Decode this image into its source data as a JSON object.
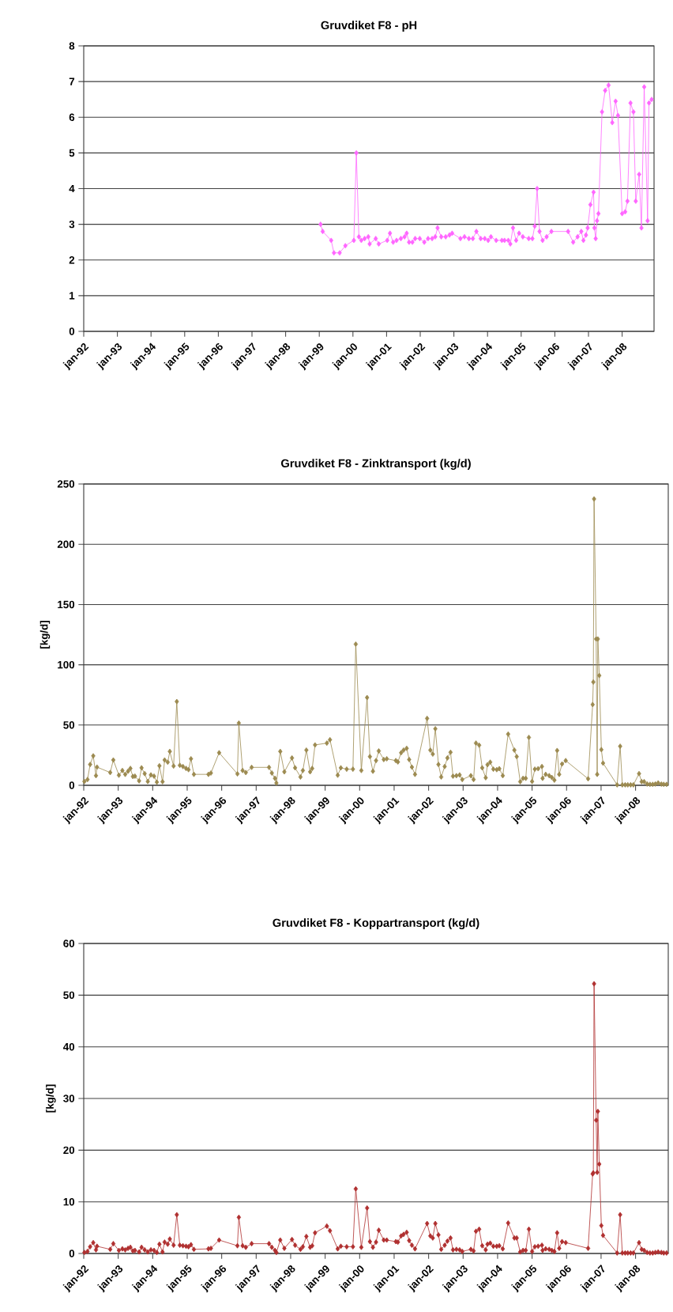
{
  "chart_data": [
    {
      "type": "line",
      "title": "Gruvdiket F8 - pH",
      "color": "#ff66ff",
      "marker": "diamond",
      "grid": "y",
      "x": [
        "1999-01-15",
        "1999-02-07",
        "1999-05-10",
        "1999-06-09",
        "1999-08-10",
        "1999-10-11",
        "2000-01-11",
        "2000-02-07",
        "2000-03-06",
        "2000-04-01",
        "2000-05-07",
        "2000-06-16",
        "2000-07-01",
        "2000-09-05",
        "2000-10-08",
        "2001-01-08",
        "2001-02-07",
        "2001-03-13",
        "2001-04-19",
        "2001-06-05",
        "2001-07-15",
        "2001-08-07",
        "2001-09-02",
        "2001-10-08",
        "2001-11-07",
        "2001-12-27",
        "2002-02-14",
        "2002-03-27",
        "2002-05-10",
        "2002-06-13",
        "2002-07-08",
        "2002-08-17",
        "2002-10-04",
        "2002-11-14",
        "2002-12-13",
        "2003-03-13",
        "2003-04-26",
        "2003-06-13",
        "2003-07-26",
        "2003-09-02",
        "2003-10-19",
        "2003-12-02",
        "2004-01-08",
        "2004-02-07",
        "2004-04-04",
        "2004-06-05",
        "2004-07-04",
        "2004-08-14",
        "2004-09-05",
        "2004-10-04",
        "2004-11-07",
        "2004-12-09",
        "2005-01-19",
        "2005-03-24",
        "2005-05-03",
        "2005-05-28",
        "2005-06-23",
        "2005-07-19",
        "2005-08-21",
        "2005-10-04",
        "2005-11-25",
        "2006-05-25",
        "2006-07-19",
        "2006-09-05",
        "2006-10-15",
        "2006-11-07",
        "2006-12-05",
        "2006-12-23",
        "2007-01-22",
        "2007-02-25",
        "2007-03-06",
        "2007-03-20",
        "2007-04-04",
        "2007-04-19",
        "2007-05-28",
        "2007-07-01",
        "2007-08-07",
        "2007-09-16",
        "2007-10-22",
        "2007-11-17",
        "2008-01-01",
        "2008-02-03",
        "2008-02-28",
        "2008-04-01",
        "2008-05-03",
        "2008-05-28",
        "2008-07-04",
        "2008-07-29",
        "2008-08-28",
        "2008-10-04",
        "2008-10-19",
        "2008-11-17"
      ],
      "values": [
        3.0,
        2.8,
        2.55,
        2.2,
        2.2,
        2.4,
        2.55,
        5.0,
        2.65,
        2.55,
        2.6,
        2.65,
        2.45,
        2.6,
        2.45,
        2.55,
        2.75,
        2.5,
        2.55,
        2.6,
        2.65,
        2.75,
        2.5,
        2.5,
        2.6,
        2.6,
        2.5,
        2.6,
        2.6,
        2.65,
        2.9,
        2.65,
        2.65,
        2.7,
        2.75,
        2.6,
        2.65,
        2.6,
        2.6,
        2.8,
        2.6,
        2.6,
        2.55,
        2.65,
        2.55,
        2.55,
        2.55,
        2.55,
        2.45,
        2.9,
        2.55,
        2.75,
        2.65,
        2.6,
        2.6,
        2.95,
        4.0,
        2.8,
        2.55,
        2.65,
        2.8,
        2.8,
        2.5,
        2.65,
        2.8,
        2.55,
        2.7,
        2.9,
        3.55,
        3.9,
        2.9,
        2.6,
        3.1,
        3.3,
        6.15,
        6.75,
        6.9,
        5.85,
        6.45,
        6.05,
        3.3,
        3.35,
        3.65,
        6.4,
        6.15,
        3.65,
        4.4,
        2.9,
        6.85,
        3.1,
        6.4,
        6.5
      ],
      "xlim": [
        "1992-01-01",
        "2008-12-13"
      ],
      "ylim": [
        0,
        8
      ],
      "yticks": [
        0,
        1,
        2,
        3,
        4,
        5,
        6,
        7,
        8
      ],
      "xticks": [
        {
          "value": "1992-01-01",
          "label": "jan-92"
        },
        {
          "value": "1993-01-01",
          "label": "jan-93"
        },
        {
          "value": "1994-01-01",
          "label": "jan-94"
        },
        {
          "value": "1995-01-01",
          "label": "jan-95"
        },
        {
          "value": "1996-01-01",
          "label": "jan-96"
        },
        {
          "value": "1997-01-01",
          "label": "jan-97"
        },
        {
          "value": "1998-01-01",
          "label": "jan-98"
        },
        {
          "value": "1999-01-01",
          "label": "jan-99"
        },
        {
          "value": "2000-01-01",
          "label": "jan-00"
        },
        {
          "value": "2001-01-01",
          "label": "jan-01"
        },
        {
          "value": "2002-01-01",
          "label": "jan-02"
        },
        {
          "value": "2003-01-01",
          "label": "jan-03"
        },
        {
          "value": "2004-01-01",
          "label": "jan-04"
        },
        {
          "value": "2005-01-01",
          "label": "jan-05"
        },
        {
          "value": "2006-01-01",
          "label": "jan-06"
        },
        {
          "value": "2007-01-01",
          "label": "jan-07"
        },
        {
          "value": "2008-01-01",
          "label": "jan-08"
        }
      ]
    },
    {
      "type": "line",
      "title": "Gruvdiket F8 - Zinktransport (kg/d)",
      "ylabel": "[kg/d]",
      "color": "#9c8a50",
      "marker": "diamond",
      "grid": "y",
      "x": [
        "1992-01-08",
        "1992-02-10",
        "1992-03-09",
        "1992-04-11",
        "1992-05-10",
        "1992-05-21",
        "1992-10-08",
        "1992-11-10",
        "1993-01-08",
        "1993-02-14",
        "1993-03-16",
        "1993-04-15",
        "1993-05-10",
        "1993-06-05",
        "1993-06-27",
        "1993-08-10",
        "1993-09-05",
        "1993-10-08",
        "1993-11-10",
        "1993-12-13",
        "1994-01-15",
        "1994-02-14",
        "1994-03-13",
        "1994-04-15",
        "1994-05-07",
        "1994-06-09",
        "1994-07-01",
        "1994-08-10",
        "1994-09-13",
        "1994-10-15",
        "1994-11-17",
        "1994-12-20",
        "1995-01-15",
        "1995-02-10",
        "1995-03-13",
        "1995-08-14",
        "1995-09-09",
        "1995-12-05",
        "1996-06-16",
        "1996-07-01",
        "1996-08-10",
        "1996-09-13",
        "1996-11-14",
        "1997-05-17",
        "1997-06-16",
        "1997-07-19",
        "1997-08-03",
        "1997-09-13",
        "1997-10-26",
        "1998-01-15",
        "1998-02-17",
        "1998-04-15",
        "1998-05-10",
        "1998-06-16",
        "1998-07-26",
        "1998-08-17",
        "1998-09-16",
        "1999-01-19",
        "1999-02-21",
        "1999-05-14",
        "1999-06-16",
        "1999-08-17",
        "1999-10-22",
        "1999-11-21",
        "2000-01-19",
        "2000-03-20",
        "2000-04-19",
        "2000-05-21",
        "2000-06-23",
        "2000-07-22",
        "2000-09-13",
        "2000-10-15",
        "2001-01-19",
        "2001-02-10",
        "2001-03-16",
        "2001-04-11",
        "2001-05-14",
        "2001-06-09",
        "2001-07-08",
        "2001-08-10",
        "2001-12-16",
        "2002-01-19",
        "2002-02-14",
        "2002-03-13",
        "2002-04-15",
        "2002-05-14",
        "2002-06-20",
        "2002-07-19",
        "2002-08-21",
        "2002-09-16",
        "2002-10-22",
        "2002-11-25",
        "2002-12-23",
        "2003-03-24",
        "2003-04-22",
        "2003-05-17",
        "2003-06-20",
        "2003-07-22",
        "2003-08-28",
        "2003-09-16",
        "2003-10-15",
        "2003-11-17",
        "2003-12-23",
        "2004-01-19",
        "2004-02-25",
        "2004-04-22",
        "2004-06-27",
        "2004-07-22",
        "2004-08-28",
        "2004-09-27",
        "2004-10-26",
        "2004-11-28",
        "2005-01-01",
        "2005-01-30",
        "2005-03-06",
        "2005-04-15",
        "2005-04-22",
        "2005-05-25",
        "2005-07-01",
        "2005-07-29",
        "2005-08-25",
        "2005-09-23",
        "2005-10-15",
        "2005-11-14",
        "2005-12-23",
        "2006-08-17",
        "2006-10-04",
        "2006-10-11",
        "2006-10-19",
        "2006-11-10",
        "2006-11-21",
        "2006-11-28",
        "2006-12-13",
        "2007-01-04",
        "2007-01-22",
        "2007-06-20",
        "2007-07-22",
        "2007-08-14",
        "2007-09-13",
        "2007-10-11",
        "2007-11-10",
        "2007-12-09",
        "2008-02-07",
        "2008-03-06",
        "2008-04-01",
        "2008-05-03",
        "2008-06-02",
        "2008-07-01",
        "2008-07-29",
        "2008-08-28",
        "2008-10-01",
        "2008-10-26",
        "2008-11-25"
      ],
      "values": [
        3.2,
        4.8,
        17.3,
        24.4,
        8.0,
        15.1,
        10.6,
        21.0,
        8.4,
        12.3,
        9.1,
        11.7,
        14.0,
        7.3,
        7.6,
        3.7,
        14.5,
        9.7,
        3.2,
        8.6,
        7.6,
        2.6,
        16.2,
        3.0,
        21.0,
        19.2,
        28.1,
        16.0,
        69.5,
        16.6,
        15.6,
        14.0,
        13.0,
        22.0,
        9.1,
        9.1,
        10.2,
        27.0,
        9.5,
        51.6,
        12.3,
        10.6,
        14.9,
        14.9,
        10.2,
        5.8,
        1.9,
        28.1,
        11.2,
        22.7,
        14.5,
        6.9,
        12.3,
        29.2,
        11.2,
        14.0,
        33.5,
        35.0,
        37.8,
        8.4,
        14.5,
        13.4,
        13.4,
        117.1,
        12.3,
        72.8,
        23.8,
        11.7,
        20.5,
        28.5,
        21.4,
        22.0,
        20.5,
        19.4,
        27.0,
        29.2,
        30.7,
        21.4,
        15.1,
        9.1,
        55.5,
        29.2,
        25.9,
        46.9,
        17.3,
        6.9,
        15.6,
        22.7,
        27.4,
        7.6,
        8.0,
        8.6,
        4.8,
        8.0,
        4.8,
        35.0,
        33.3,
        14.5,
        6.3,
        17.1,
        19.2,
        13.4,
        13.0,
        13.8,
        8.0,
        42.5,
        29.2,
        23.8,
        3.0,
        5.8,
        5.8,
        39.7,
        3.2,
        13.4,
        13.8,
        15.6,
        5.8,
        9.1,
        8.0,
        6.5,
        4.3,
        28.9,
        9.1,
        17.7,
        20.5,
        5.4,
        67.0,
        85.7,
        237.6,
        121.4,
        9.1,
        121.4,
        91.1,
        29.6,
        18.4,
        0.4,
        32.4,
        0.4,
        0.4,
        0.4,
        0.4,
        0.4,
        9.7,
        3.0,
        3.0,
        1.1,
        0.8,
        0.8,
        1.1,
        2.0,
        1.0,
        0.8,
        0.8
      ],
      "xlim": [
        "1992-01-01",
        "2008-12-13"
      ],
      "ylim": [
        0,
        250
      ],
      "yticks": [
        0,
        50,
        100,
        150,
        200,
        250
      ],
      "xticks": [
        {
          "value": "1992-01-01",
          "label": "jan-92"
        },
        {
          "value": "1993-01-01",
          "label": "jan-93"
        },
        {
          "value": "1994-01-01",
          "label": "jan-94"
        },
        {
          "value": "1995-01-01",
          "label": "jan-95"
        },
        {
          "value": "1996-01-01",
          "label": "jan-96"
        },
        {
          "value": "1997-01-01",
          "label": "jan-97"
        },
        {
          "value": "1998-01-01",
          "label": "jan-98"
        },
        {
          "value": "1999-01-01",
          "label": "jan-99"
        },
        {
          "value": "2000-01-01",
          "label": "jan-00"
        },
        {
          "value": "2001-01-01",
          "label": "jan-01"
        },
        {
          "value": "2002-01-01",
          "label": "jan-02"
        },
        {
          "value": "2003-01-01",
          "label": "jan-03"
        },
        {
          "value": "2004-01-01",
          "label": "jan-04"
        },
        {
          "value": "2005-01-01",
          "label": "jan-05"
        },
        {
          "value": "2006-01-01",
          "label": "jan-06"
        },
        {
          "value": "2007-01-01",
          "label": "jan-07"
        },
        {
          "value": "2008-01-01",
          "label": "jan-08"
        }
      ]
    },
    {
      "type": "line",
      "title": "Gruvdiket F8 - Koppartransport (kg/d)",
      "ylabel": "[kg/d]",
      "color": "#b03030",
      "marker": "diamond",
      "grid": "y",
      "x": [
        "1992-01-08",
        "1992-02-10",
        "1992-03-09",
        "1992-04-11",
        "1992-05-10",
        "1992-05-21",
        "1992-10-08",
        "1992-11-10",
        "1993-01-08",
        "1993-02-14",
        "1993-03-16",
        "1993-04-15",
        "1993-05-10",
        "1993-06-05",
        "1993-06-27",
        "1993-08-10",
        "1993-09-05",
        "1993-10-08",
        "1993-11-10",
        "1993-12-13",
        "1994-01-15",
        "1994-02-14",
        "1994-03-13",
        "1994-04-15",
        "1994-05-07",
        "1994-06-09",
        "1994-07-01",
        "1994-08-10",
        "1994-09-13",
        "1994-10-15",
        "1994-11-17",
        "1994-12-20",
        "1995-01-15",
        "1995-02-10",
        "1995-03-13",
        "1995-08-14",
        "1995-09-09",
        "1995-12-05",
        "1996-06-16",
        "1996-07-01",
        "1996-08-10",
        "1996-09-13",
        "1996-11-14",
        "1997-05-17",
        "1997-06-16",
        "1997-07-19",
        "1997-08-03",
        "1997-09-13",
        "1997-10-26",
        "1998-01-15",
        "1998-02-17",
        "1998-04-15",
        "1998-05-10",
        "1998-06-16",
        "1998-07-26",
        "1998-08-17",
        "1998-09-16",
        "1999-01-19",
        "1999-02-21",
        "1999-05-14",
        "1999-06-16",
        "1999-08-17",
        "1999-10-22",
        "1999-11-21",
        "2000-01-19",
        "2000-03-20",
        "2000-04-19",
        "2000-05-21",
        "2000-06-23",
        "2000-07-22",
        "2000-09-13",
        "2000-10-15",
        "2001-01-19",
        "2001-02-10",
        "2001-03-16",
        "2001-04-11",
        "2001-05-14",
        "2001-06-09",
        "2001-07-08",
        "2001-08-10",
        "2001-12-16",
        "2002-01-19",
        "2002-02-14",
        "2002-03-13",
        "2002-04-15",
        "2002-05-14",
        "2002-06-20",
        "2002-07-19",
        "2002-08-21",
        "2002-09-16",
        "2002-10-22",
        "2002-11-25",
        "2002-12-23",
        "2003-03-24",
        "2003-04-22",
        "2003-05-17",
        "2003-06-20",
        "2003-07-22",
        "2003-08-28",
        "2003-09-16",
        "2003-10-15",
        "2003-11-17",
        "2003-12-23",
        "2004-01-19",
        "2004-02-25",
        "2004-04-22",
        "2004-06-27",
        "2004-07-22",
        "2004-08-28",
        "2004-09-27",
        "2004-10-26",
        "2004-11-28",
        "2005-01-01",
        "2005-01-30",
        "2005-03-06",
        "2005-04-15",
        "2005-04-22",
        "2005-05-25",
        "2005-07-01",
        "2005-07-29",
        "2005-08-25",
        "2005-09-23",
        "2005-10-15",
        "2005-11-14",
        "2005-12-23",
        "2006-08-17",
        "2006-10-04",
        "2006-10-11",
        "2006-10-19",
        "2006-11-10",
        "2006-11-21",
        "2006-11-28",
        "2006-12-13",
        "2007-01-04",
        "2007-01-22",
        "2007-06-20",
        "2007-07-22",
        "2007-08-14",
        "2007-09-13",
        "2007-10-11",
        "2007-11-10",
        "2007-12-09",
        "2008-02-07",
        "2008-03-06",
        "2008-04-01",
        "2008-05-03",
        "2008-06-02",
        "2008-07-01",
        "2008-07-29",
        "2008-08-28",
        "2008-10-01",
        "2008-10-26",
        "2008-11-25"
      ],
      "values": [
        0.2,
        0.4,
        1.3,
        2.1,
        0.7,
        1.4,
        0.8,
        1.9,
        0.6,
        0.9,
        0.7,
        1.0,
        1.2,
        0.5,
        0.6,
        0.3,
        1.2,
        0.7,
        0.3,
        0.7,
        0.6,
        0.2,
        1.8,
        0.3,
        2.2,
        1.8,
        2.8,
        1.6,
        7.5,
        1.6,
        1.5,
        1.4,
        1.3,
        1.7,
        0.8,
        0.9,
        1.0,
        2.6,
        1.5,
        7.0,
        1.5,
        1.2,
        1.9,
        1.9,
        1.2,
        0.6,
        0.2,
        2.6,
        1.0,
        2.7,
        1.6,
        0.8,
        1.3,
        3.3,
        1.2,
        1.5,
        4.0,
        5.3,
        4.4,
        0.9,
        1.4,
        1.3,
        1.3,
        12.5,
        1.2,
        8.8,
        2.3,
        1.2,
        2.2,
        4.5,
        2.6,
        2.6,
        2.3,
        2.2,
        3.4,
        3.7,
        4.1,
        2.5,
        1.6,
        0.9,
        5.8,
        3.4,
        3.0,
        5.8,
        3.6,
        0.8,
        1.6,
        2.4,
        3.0,
        0.7,
        0.8,
        0.7,
        0.4,
        0.8,
        0.5,
        4.3,
        4.7,
        1.5,
        0.7,
        1.8,
        2.0,
        1.4,
        1.4,
        1.5,
        0.9,
        5.9,
        3.0,
        3.0,
        0.3,
        0.6,
        0.6,
        4.7,
        0.4,
        1.3,
        1.4,
        1.6,
        0.6,
        0.9,
        0.8,
        0.6,
        0.4,
        4.0,
        1.0,
        2.3,
        2.1,
        1.0,
        15.4,
        15.6,
        52.2,
        25.8,
        15.7,
        27.5,
        17.3,
        5.4,
        3.5,
        0.1,
        7.5,
        0.1,
        0.1,
        0.1,
        0.1,
        0.1,
        2.1,
        0.8,
        0.6,
        0.2,
        0.1,
        0.1,
        0.2,
        0.3,
        0.2,
        0.1,
        0.1
      ],
      "xlim": [
        "1992-01-01",
        "2008-12-13"
      ],
      "ylim": [
        0,
        60
      ],
      "yticks": [
        0,
        10,
        20,
        30,
        40,
        50,
        60
      ],
      "xticks": [
        {
          "value": "1992-01-01",
          "label": "jan-92"
        },
        {
          "value": "1993-01-01",
          "label": "jan-93"
        },
        {
          "value": "1994-01-01",
          "label": "jan-94"
        },
        {
          "value": "1995-01-01",
          "label": "jan-95"
        },
        {
          "value": "1996-01-01",
          "label": "jan-96"
        },
        {
          "value": "1997-01-01",
          "label": "jan-97"
        },
        {
          "value": "1998-01-01",
          "label": "jan-98"
        },
        {
          "value": "1999-01-01",
          "label": "jan-99"
        },
        {
          "value": "2000-01-01",
          "label": "jan-00"
        },
        {
          "value": "2001-01-01",
          "label": "jan-01"
        },
        {
          "value": "2002-01-01",
          "label": "jan-02"
        },
        {
          "value": "2003-01-01",
          "label": "jan-03"
        },
        {
          "value": "2004-01-01",
          "label": "jan-04"
        },
        {
          "value": "2005-01-01",
          "label": "jan-05"
        },
        {
          "value": "2006-01-01",
          "label": "jan-06"
        },
        {
          "value": "2007-01-01",
          "label": "jan-07"
        },
        {
          "value": "2008-01-01",
          "label": "jan-08"
        }
      ]
    }
  ]
}
